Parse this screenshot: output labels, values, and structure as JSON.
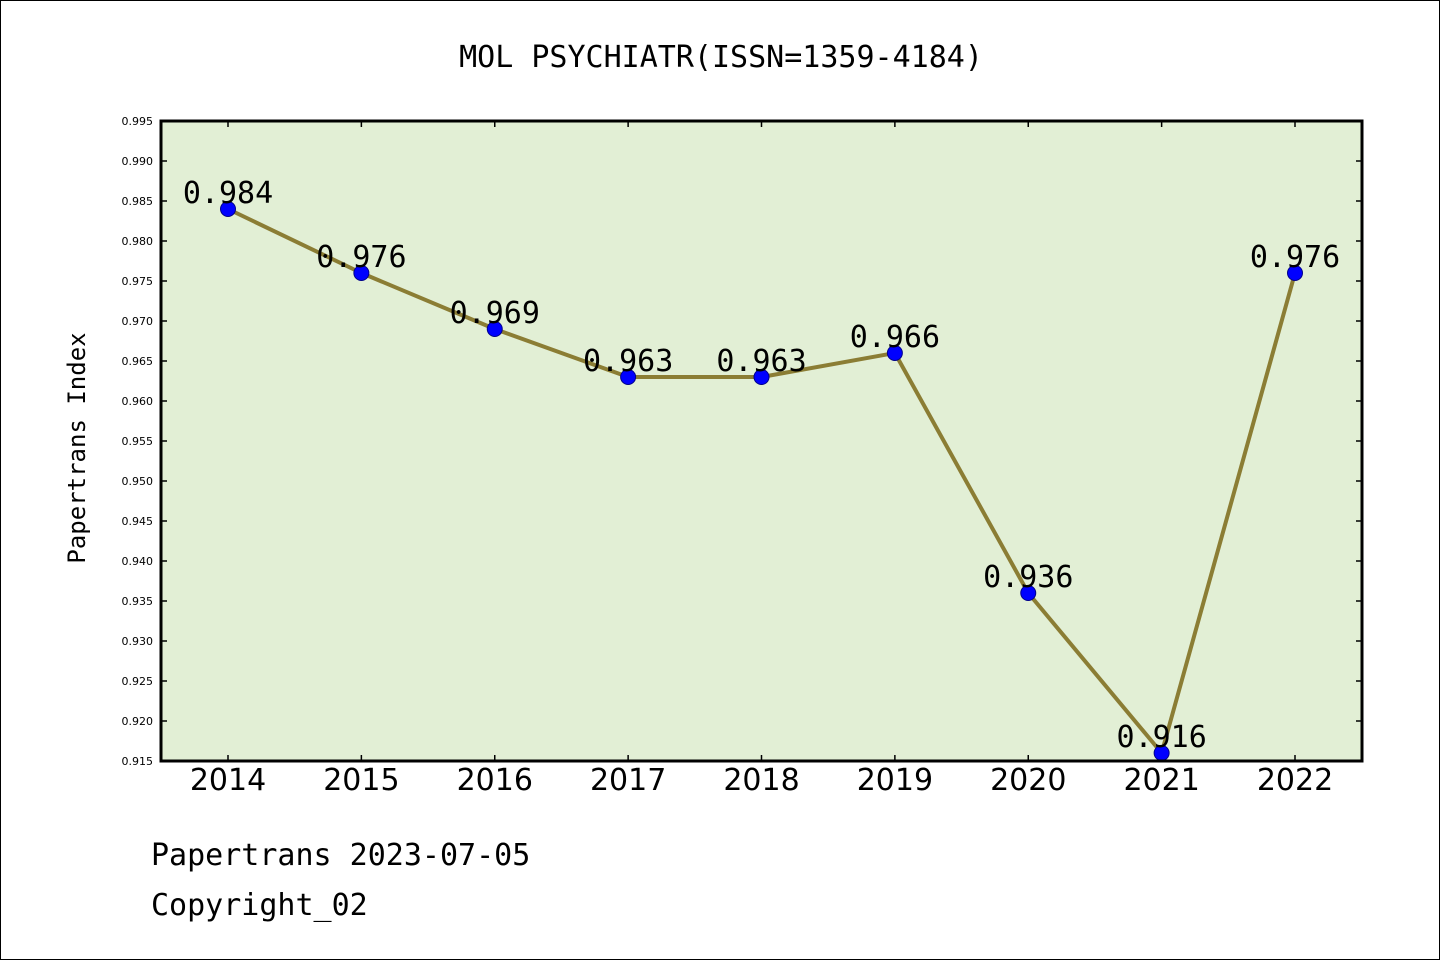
{
  "chart_data": {
    "type": "line",
    "title": "MOL PSYCHIATR(ISSN=1359-4184)",
    "ylabel": "Papertrans Index",
    "xlabel": "",
    "categories": [
      "2014",
      "2015",
      "2016",
      "2017",
      "2018",
      "2019",
      "2020",
      "2021",
      "2022"
    ],
    "series": [
      {
        "values": [
          0.984,
          0.976,
          0.969,
          0.963,
          0.963,
          0.966,
          0.936,
          0.916,
          0.976
        ],
        "labels": [
          "0.984",
          "0.976",
          "0.969",
          "0.963",
          "0.963",
          "0.966",
          "0.936",
          "0.916",
          "0.976"
        ]
      }
    ],
    "ylim": [
      0.915,
      0.995
    ],
    "yticks": [
      "0.915",
      "0.920",
      "0.925",
      "0.930",
      "0.935",
      "0.940",
      "0.945",
      "0.950",
      "0.955",
      "0.960",
      "0.965",
      "0.970",
      "0.975",
      "0.980",
      "0.985",
      "0.990",
      "0.995"
    ],
    "grid": false,
    "legend": "none",
    "colors": {
      "plot_background": "#e2efd5",
      "line": "#8b7d34",
      "marker": "#0000ff"
    }
  },
  "footer": {
    "line1": "Papertrans 2023-07-05",
    "line2": "Copyright_02"
  }
}
